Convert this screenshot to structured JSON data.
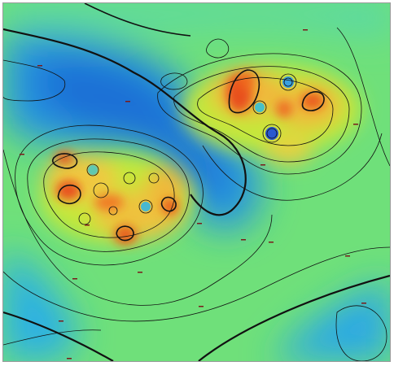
{
  "map": {
    "type": "contour-heatmap",
    "colors": {
      "low": "#1f7ad8",
      "low_mid": "#28b8e8",
      "mid": "#45e0a0",
      "mid_high": "#a6ec3a",
      "high": "#f2c83a",
      "peak": "#e8531e",
      "contour": "#111111"
    }
  }
}
